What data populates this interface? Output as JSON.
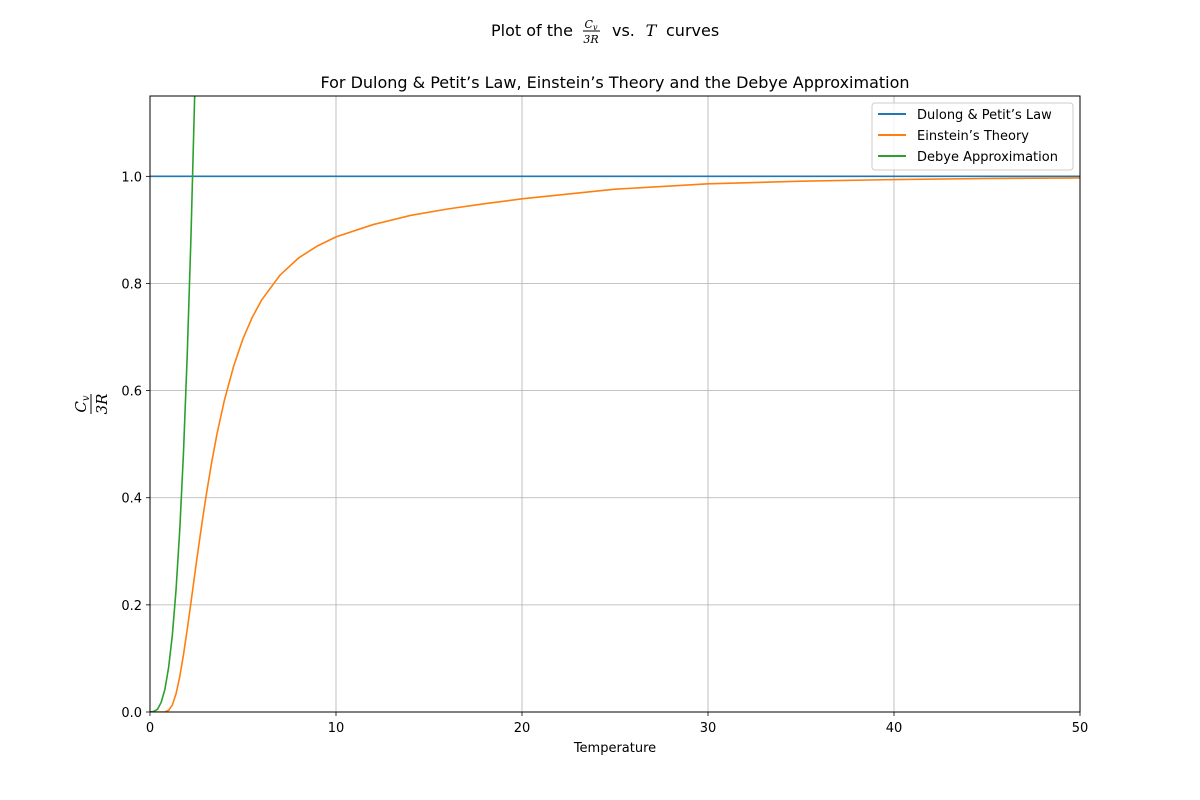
{
  "figure": {
    "suptitle": {
      "prefix": "Plot  of  the",
      "frac_num": "C",
      "frac_num_sub": "v",
      "frac_den": "3R",
      "middle": "vs.",
      "var": "T",
      "suffix": "curves"
    }
  },
  "chart_data": {
    "type": "line",
    "title": "For Dulong & Petit’s Law, Einstein’s Theory and the Debye Approximation",
    "xlabel": "Temperature",
    "ylabel": {
      "num": "C",
      "num_sub": "v",
      "den": "3R"
    },
    "xlim": [
      0,
      50
    ],
    "ylim": [
      0,
      1.15
    ],
    "xticks": [
      0,
      10,
      20,
      30,
      40,
      50
    ],
    "xtick_labels": [
      "0",
      "10",
      "20",
      "30",
      "40",
      "50"
    ],
    "yticks": [
      0.0,
      0.2,
      0.4,
      0.6,
      0.8,
      1.0
    ],
    "ytick_labels": [
      "0.0",
      "0.2",
      "0.4",
      "0.6",
      "0.8",
      "1.0"
    ],
    "grid": true,
    "legend_position": "top-right",
    "series": [
      {
        "name": "Dulong & Petit’s Law",
        "color": "#1f77b4",
        "x": [
          0,
          50
        ],
        "y": [
          1.0,
          1.0
        ]
      },
      {
        "name": "Einstein’s Theory",
        "color": "#ff7f0e",
        "x": [
          0,
          0.5,
          0.8,
          1.0,
          1.2,
          1.4,
          1.6,
          1.8,
          2.0,
          2.2,
          2.5,
          2.8,
          3.0,
          3.3,
          3.6,
          4.0,
          4.5,
          5.0,
          5.5,
          6.0,
          7.0,
          8.0,
          9.0,
          10.0,
          12.0,
          14.0,
          16.0,
          18.0,
          20.0,
          25.0,
          30.0,
          35.0,
          40.0,
          45.0,
          50.0
        ],
        "y": [
          0.0,
          0.0,
          0.0,
          0.003,
          0.013,
          0.034,
          0.066,
          0.107,
          0.154,
          0.204,
          0.281,
          0.354,
          0.4,
          0.463,
          0.519,
          0.582,
          0.646,
          0.697,
          0.737,
          0.769,
          0.816,
          0.848,
          0.87,
          0.887,
          0.91,
          0.927,
          0.939,
          0.949,
          0.958,
          0.976,
          0.986,
          0.991,
          0.994,
          0.996,
          0.997
        ]
      },
      {
        "name": "Debye Approximation",
        "color": "#2ca02c",
        "x": [
          0,
          0.2,
          0.4,
          0.6,
          0.8,
          1.0,
          1.2,
          1.4,
          1.6,
          1.8,
          2.0,
          2.2,
          2.4,
          2.5
        ],
        "y": [
          0.0,
          0.001,
          0.005,
          0.018,
          0.042,
          0.083,
          0.143,
          0.228,
          0.34,
          0.484,
          0.665,
          0.884,
          1.148,
          1.2
        ]
      }
    ]
  }
}
